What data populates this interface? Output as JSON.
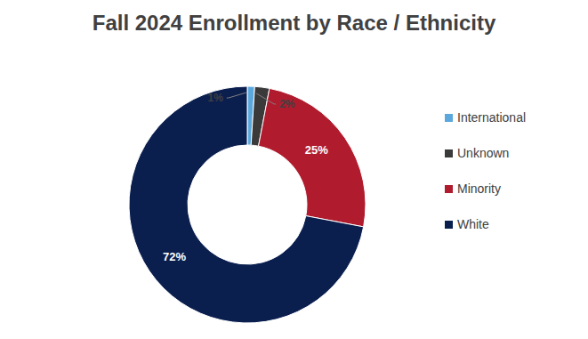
{
  "chart_data": {
    "type": "pie",
    "title": "Fall 2024 Enrollment by Race / Ethnicity",
    "categories": [
      "International",
      "Unknown",
      "Minority",
      "White"
    ],
    "values": [
      1,
      2,
      25,
      72
    ],
    "value_labels": [
      "1%",
      "2%",
      "25%",
      "72%"
    ],
    "colors": [
      "#5ba8dc",
      "#3a3a3a",
      "#b01c2e",
      "#0b1f4f"
    ],
    "legend": "right",
    "data_labels": true,
    "donut": true
  }
}
